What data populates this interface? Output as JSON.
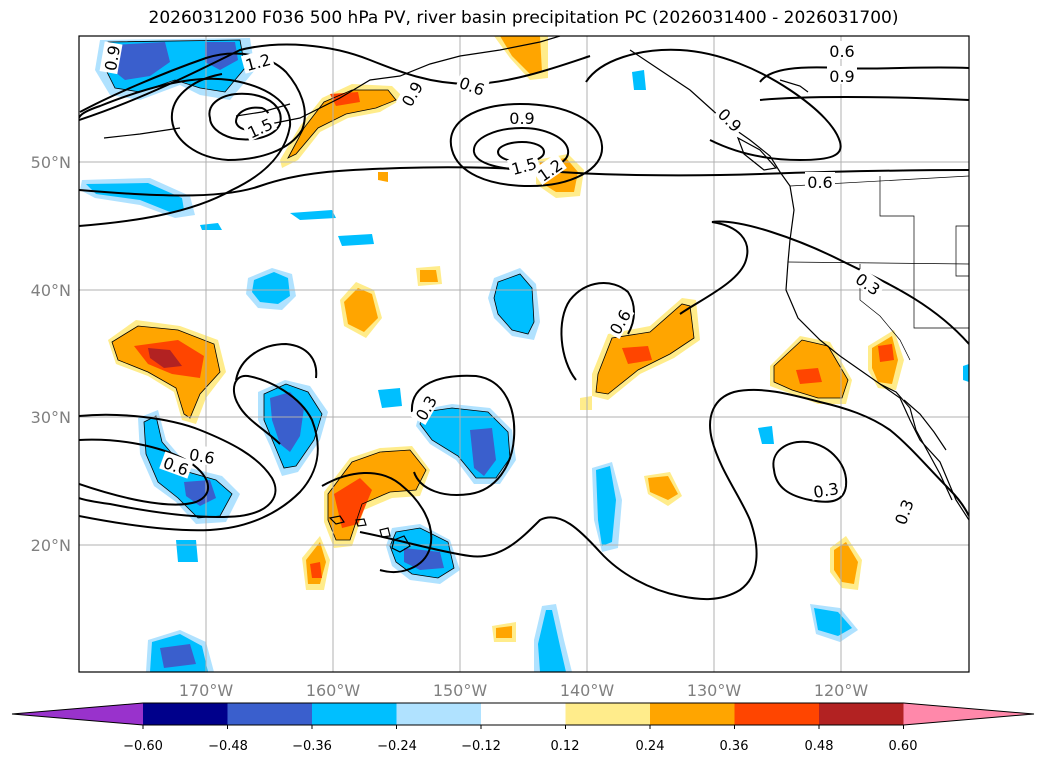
{
  "title": "2026031200 F036 500 hPa PV, river basin precipitation PC (2026031400 - 2026031700)",
  "map": {
    "lon_labels": [
      "170°W",
      "160°W",
      "150°W",
      "140°W",
      "130°W",
      "120°W"
    ],
    "lat_labels": [
      "50°N",
      "40°N",
      "30°N",
      "20°N"
    ],
    "contour_labels": [
      "1.2",
      "1.5",
      "0.9",
      "0.6",
      "0.9",
      "1.5",
      "1.2",
      "0.9",
      "0.6",
      "0.9",
      "0.6",
      "0.6",
      "0.3",
      "0.6",
      "0.3",
      "0.6",
      "0.9",
      "0.3",
      "0.3"
    ]
  },
  "colorbar": {
    "ticks": [
      "−0.60",
      "−0.48",
      "−0.36",
      "−0.24",
      "−0.12",
      "0.12",
      "0.24",
      "0.36",
      "0.48",
      "0.60"
    ],
    "colors": [
      "#9932cc",
      "#00008b",
      "#3a5fcd",
      "#00bfff",
      "#b0e2ff",
      "#ffffff",
      "#ffec8b",
      "#ffa500",
      "#ff4500",
      "#b22222",
      "#ff88aa"
    ]
  },
  "fill_colors": {
    "neg1": "#b0e2ff",
    "neg2": "#00bfff",
    "neg3": "#3a5fcd",
    "neg4": "#00008b",
    "pos1": "#ffec8b",
    "pos2": "#ffa500",
    "pos3": "#ff4500",
    "pos4": "#b22222"
  }
}
